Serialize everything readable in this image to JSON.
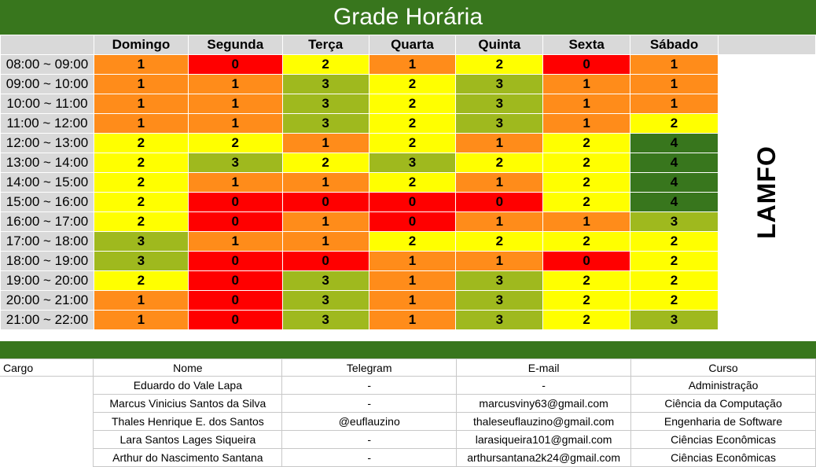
{
  "title": "Grade Horária",
  "side_label": "LAMFO",
  "colors": {
    "header_green": "#38761d",
    "level_0": "#ff0000",
    "level_1": "#ff8c1a",
    "level_2": "#ffff00",
    "level_3": "#9fb91e",
    "level_4": "#38761d"
  },
  "days": [
    "Domingo",
    "Segunda",
    "Terça",
    "Quarta",
    "Quinta",
    "Sexta",
    "Sábado"
  ],
  "schedule": [
    {
      "time": "08:00 ~ 09:00",
      "values": [
        1,
        0,
        2,
        1,
        2,
        0,
        1
      ]
    },
    {
      "time": "09:00 ~ 10:00",
      "values": [
        1,
        1,
        3,
        2,
        3,
        1,
        1
      ]
    },
    {
      "time": "10:00 ~ 11:00",
      "values": [
        1,
        1,
        3,
        2,
        3,
        1,
        1
      ]
    },
    {
      "time": "11:00 ~ 12:00",
      "values": [
        1,
        1,
        3,
        2,
        3,
        1,
        2
      ]
    },
    {
      "time": "12:00 ~ 13:00",
      "values": [
        2,
        2,
        1,
        2,
        1,
        2,
        4
      ]
    },
    {
      "time": "13:00 ~ 14:00",
      "values": [
        2,
        3,
        2,
        3,
        2,
        2,
        4
      ]
    },
    {
      "time": "14:00 ~ 15:00",
      "values": [
        2,
        1,
        1,
        2,
        1,
        2,
        4
      ]
    },
    {
      "time": "15:00 ~ 16:00",
      "values": [
        2,
        0,
        0,
        0,
        0,
        2,
        4
      ]
    },
    {
      "time": "16:00 ~ 17:00",
      "values": [
        2,
        0,
        1,
        0,
        1,
        1,
        3
      ]
    },
    {
      "time": "17:00 ~ 18:00",
      "values": [
        3,
        1,
        1,
        2,
        2,
        2,
        2
      ]
    },
    {
      "time": "18:00 ~ 19:00",
      "values": [
        3,
        0,
        0,
        1,
        1,
        0,
        2
      ]
    },
    {
      "time": "19:00 ~ 20:00",
      "values": [
        2,
        0,
        3,
        1,
        3,
        2,
        2
      ]
    },
    {
      "time": "20:00 ~ 21:00",
      "values": [
        1,
        0,
        3,
        1,
        3,
        2,
        2
      ]
    },
    {
      "time": "21:00 ~ 22:00",
      "values": [
        1,
        0,
        3,
        1,
        3,
        2,
        3
      ]
    }
  ],
  "members": {
    "headers": {
      "cargo": "Cargo",
      "nome": "Nome",
      "telegram": "Telegram",
      "email": "E-mail",
      "curso": "Curso"
    },
    "rows": [
      {
        "nome": "Eduardo do Vale Lapa",
        "telegram": "-",
        "email": "-",
        "curso": "Administração"
      },
      {
        "nome": "Marcus Vinicius Santos da Silva",
        "telegram": "-",
        "email": "marcusviny63@gmail.com",
        "curso": "Ciência da Computação"
      },
      {
        "nome": "Thales Henrique E. dos Santos",
        "telegram": "@euflauzino",
        "email": "thaleseuflauzino@gmail.com",
        "curso": "Engenharia de Software"
      },
      {
        "nome": "Lara Santos Lages Siqueira",
        "telegram": "-",
        "email": "larasiqueira101@gmail.com",
        "curso": "Ciências Econômicas"
      },
      {
        "nome": "Arthur do Nascimento Santana",
        "telegram": "-",
        "email": "arthursantana2k24@gmail.com",
        "curso": "Ciências Econômicas"
      }
    ]
  }
}
